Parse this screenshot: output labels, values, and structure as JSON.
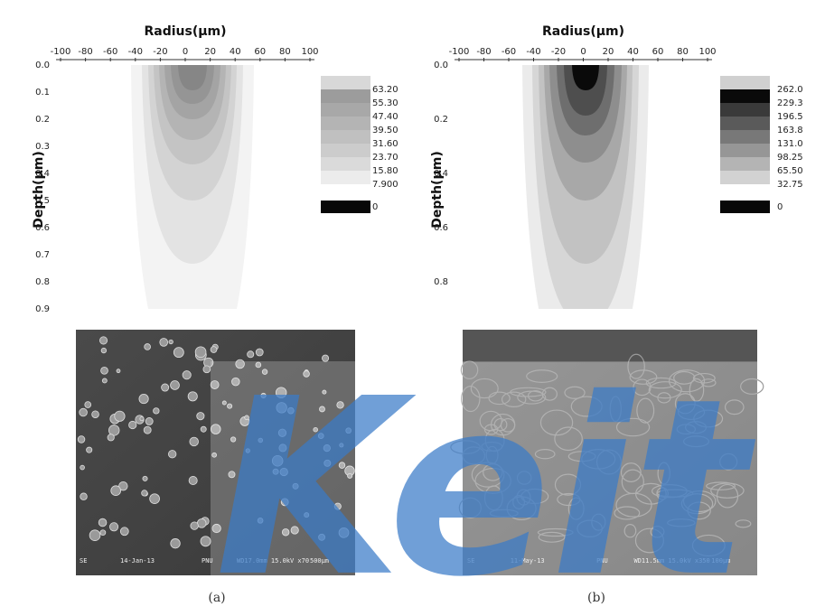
{
  "panels": [
    {
      "x_label": "Radius(μm)",
      "y_label": "Depth(μm)",
      "x_ticks": [
        "-100",
        "-80",
        "-60",
        "-40",
        "-20",
        "0",
        "20",
        "40",
        "60",
        "80",
        "100"
      ],
      "y_ticks": [
        "0.0",
        "0.1",
        "0.2",
        "0.3",
        "0.4",
        "0.5",
        "0.6",
        "0.7",
        "0.8",
        "0.9"
      ],
      "legend": [
        "63.20",
        "55.30",
        "47.40",
        "39.50",
        "31.60",
        "23.70",
        "15.80",
        "7.900",
        "0"
      ],
      "sem_info": [
        "SE",
        "14-Jan-13",
        "PNU",
        "WD17.0mm 15.0kV x70",
        "500μm"
      ],
      "caption": "(a)"
    },
    {
      "x_label": "Radius(μm)",
      "y_label": "Depth(μm)",
      "x_ticks": [
        "-100",
        "-80",
        "-60",
        "-40",
        "-20",
        "0",
        "20",
        "40",
        "60",
        "80",
        "100"
      ],
      "y_ticks": [
        "0.0",
        "0.2",
        "0.4",
        "0.6",
        "0.8"
      ],
      "legend": [
        "262.0",
        "229.3",
        "196.5",
        "163.8",
        "131.0",
        "98.25",
        "65.50",
        "32.75",
        "0"
      ],
      "sem_info": [
        "SE",
        "11-May-13",
        "PNU",
        "WD11.5mm 15.0kV x350",
        "100μm"
      ],
      "caption": "(b)"
    }
  ],
  "watermark": "Keit"
}
